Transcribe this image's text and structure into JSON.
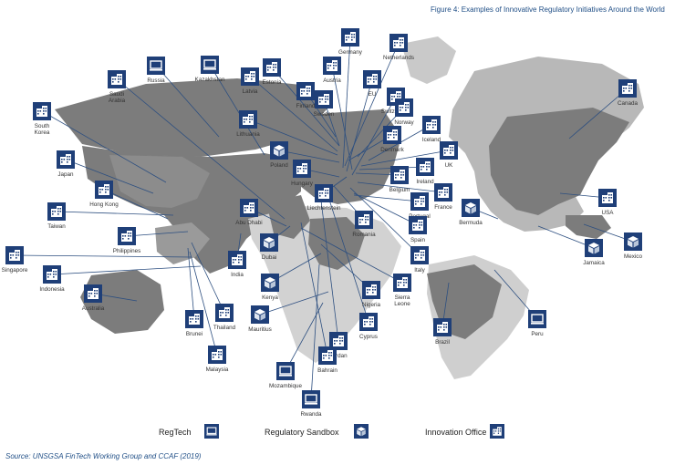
{
  "figure": {
    "title": "Figure 4: Examples of Innovative Regulatory Initiatives Around the World",
    "source": "Source: UNSGSA FinTech Working Group and CCAF (2019)"
  },
  "legend": [
    {
      "icon": "innovation-office-icon",
      "label": "Innovation Office"
    },
    {
      "icon": "regulatory-sandbox-icon",
      "label": "Regulatory Sandbox"
    },
    {
      "icon": "regtech-icon",
      "label": "RegTech"
    }
  ],
  "colors": {
    "icon_fill": "#1f3f78",
    "leader_line": "#2d4f80",
    "land_dark": "#7a7a7a",
    "land_light": "#d5d5d5",
    "land_grey": "#b8b8b8",
    "title": "#1f4e86"
  },
  "jurisdictions": [
    {
      "name": "Germany",
      "icon": "innovation-office-icon"
    },
    {
      "name": "Netherlands",
      "icon": "innovation-office-icon"
    },
    {
      "name": "Kazakhstan",
      "icon": "regtech-icon"
    },
    {
      "name": "Russia",
      "icon": "regtech-icon"
    },
    {
      "name": "Saudi Arabia",
      "icon": "innovation-office-icon"
    },
    {
      "name": "South Korea",
      "icon": "innovation-office-icon"
    },
    {
      "name": "Estonia",
      "icon": "innovation-office-icon"
    },
    {
      "name": "Latvia",
      "icon": "innovation-office-icon"
    },
    {
      "name": "Austria",
      "icon": "innovation-office-icon"
    },
    {
      "name": "EU",
      "icon": "innovation-office-icon"
    },
    {
      "name": "Switzerland",
      "icon": "innovation-office-icon"
    },
    {
      "name": "Finland",
      "icon": "innovation-office-icon"
    },
    {
      "name": "Sweden",
      "icon": "innovation-office-icon"
    },
    {
      "name": "Norway",
      "icon": "innovation-office-icon"
    },
    {
      "name": "Canada",
      "icon": "innovation-office-icon"
    },
    {
      "name": "Lithuania",
      "icon": "innovation-office-icon"
    },
    {
      "name": "Iceland",
      "icon": "innovation-office-icon"
    },
    {
      "name": "Denmark",
      "icon": "innovation-office-icon"
    },
    {
      "name": "Japan",
      "icon": "innovation-office-icon"
    },
    {
      "name": "Poland",
      "icon": "regulatory-sandbox-icon"
    },
    {
      "name": "UK",
      "icon": "innovation-office-icon"
    },
    {
      "name": "Ireland",
      "icon": "innovation-office-icon"
    },
    {
      "name": "Hong Kong",
      "icon": "innovation-office-icon"
    },
    {
      "name": "Belgium",
      "icon": "innovation-office-icon"
    },
    {
      "name": "Hungary",
      "icon": "innovation-office-icon"
    },
    {
      "name": "Taiwan",
      "icon": "innovation-office-icon"
    },
    {
      "name": "Abu Dhabi",
      "icon": "innovation-office-icon"
    },
    {
      "name": "Liechtenstein",
      "icon": "innovation-office-icon"
    },
    {
      "name": "France",
      "icon": "innovation-office-icon"
    },
    {
      "name": "Portugal",
      "icon": "innovation-office-icon"
    },
    {
      "name": "Bermuda",
      "icon": "regulatory-sandbox-icon"
    },
    {
      "name": "USA",
      "icon": "innovation-office-icon"
    },
    {
      "name": "Philippines",
      "icon": "innovation-office-icon"
    },
    {
      "name": "Romania",
      "icon": "innovation-office-icon"
    },
    {
      "name": "Spain",
      "icon": "innovation-office-icon"
    },
    {
      "name": "Singapore",
      "icon": "innovation-office-icon"
    },
    {
      "name": "Dubai",
      "icon": "regulatory-sandbox-icon"
    },
    {
      "name": "India",
      "icon": "innovation-office-icon"
    },
    {
      "name": "Jamaica",
      "icon": "regulatory-sandbox-icon"
    },
    {
      "name": "Mexico",
      "icon": "regulatory-sandbox-icon"
    },
    {
      "name": "Indonesia",
      "icon": "innovation-office-icon"
    },
    {
      "name": "Italy",
      "icon": "innovation-office-icon"
    },
    {
      "name": "Kenya",
      "icon": "regulatory-sandbox-icon"
    },
    {
      "name": "Nigeria",
      "icon": "innovation-office-icon"
    },
    {
      "name": "Sierra Leone",
      "icon": "innovation-office-icon"
    },
    {
      "name": "Australia",
      "icon": "innovation-office-icon"
    },
    {
      "name": "Brunei",
      "icon": "innovation-office-icon"
    },
    {
      "name": "Thailand",
      "icon": "innovation-office-icon"
    },
    {
      "name": "Mauritius",
      "icon": "regulatory-sandbox-icon"
    },
    {
      "name": "Cyprus",
      "icon": "innovation-office-icon"
    },
    {
      "name": "Peru",
      "icon": "regtech-icon"
    },
    {
      "name": "Brazil",
      "icon": "innovation-office-icon"
    },
    {
      "name": "Malaysia",
      "icon": "innovation-office-icon"
    },
    {
      "name": "Jordan",
      "icon": "innovation-office-icon"
    },
    {
      "name": "Bahrain",
      "icon": "innovation-office-icon"
    },
    {
      "name": "Mozambique",
      "icon": "regtech-icon"
    },
    {
      "name": "Rwanda",
      "icon": "regtech-icon"
    }
  ]
}
